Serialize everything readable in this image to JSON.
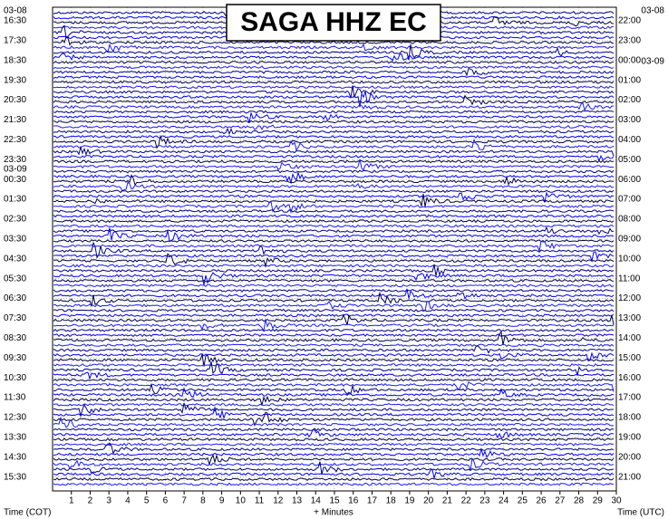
{
  "chart_data": {
    "type": "helicorder",
    "title": "SAGA HHZ EC",
    "x_label": "+ Minutes",
    "left_axis_label": "Time (COT)",
    "right_axis_label": "Time (UTC)",
    "xlim": [
      0,
      30
    ],
    "xticks": [
      1,
      2,
      3,
      4,
      5,
      6,
      7,
      8,
      9,
      10,
      11,
      12,
      13,
      14,
      15,
      16,
      17,
      18,
      19,
      20,
      21,
      22,
      23,
      24,
      25,
      26,
      27,
      28,
      29,
      30
    ],
    "left_dates": [
      "03-08",
      "03-09"
    ],
    "right_dates": [
      "03-08",
      "03-09"
    ],
    "left_times": [
      "16:30",
      "17:30",
      "18:30",
      "19:30",
      "20:30",
      "21:30",
      "22:30",
      "23:30",
      "00:30",
      "01:30",
      "02:30",
      "03:30",
      "04:30",
      "05:30",
      "06:30",
      "07:30",
      "08:30",
      "09:30",
      "10:30",
      "11:30",
      "12:30",
      "13:30",
      "14:30",
      "15:30"
    ],
    "right_times": [
      "22:00",
      "23:00",
      "00:00",
      "01:00",
      "02:00",
      "03:00",
      "04:00",
      "05:00",
      "06:00",
      "07:00",
      "08:00",
      "09:00",
      "10:00",
      "11:00",
      "12:00",
      "13:00",
      "14:00",
      "15:00",
      "16:00",
      "17:00",
      "18:00",
      "19:00",
      "20:00",
      "21:00"
    ],
    "grid": true
  }
}
